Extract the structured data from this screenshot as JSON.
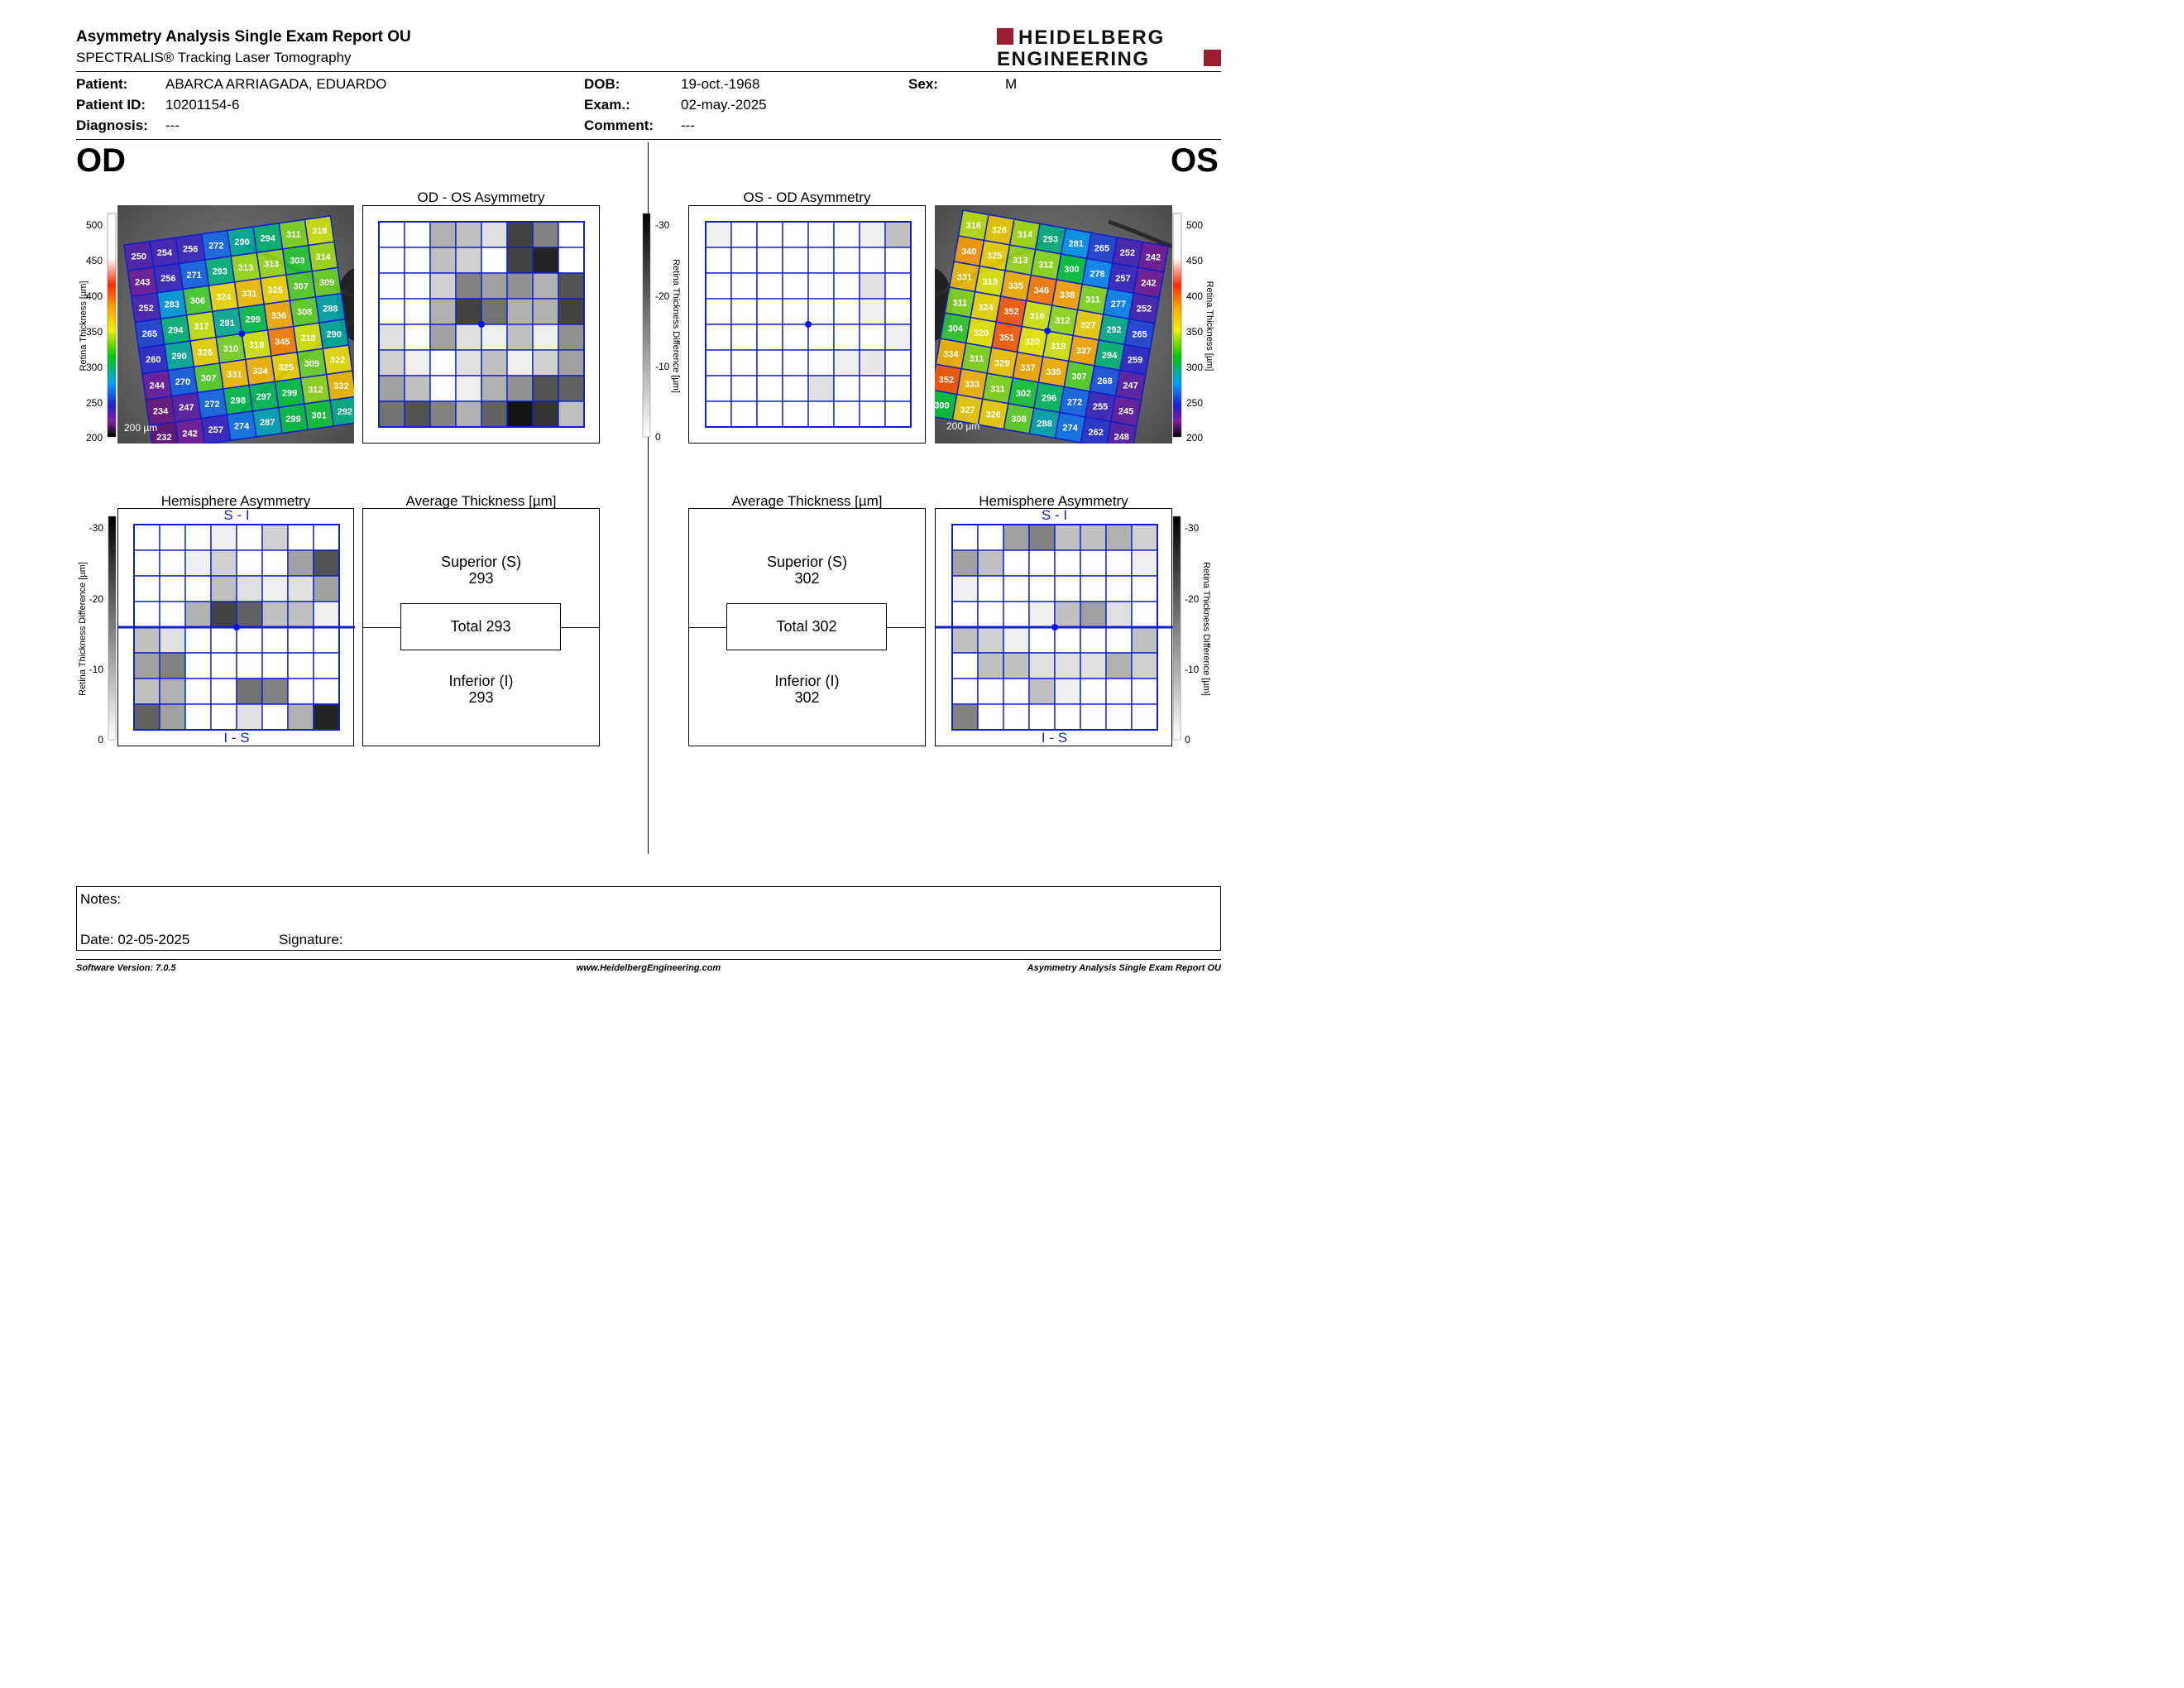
{
  "header": {
    "title": "Asymmetry Analysis Single Exam Report OU",
    "subtitle": "SPECTRALIS® Tracking Laser Tomography",
    "logo_line1": "HEIDELBERG",
    "logo_line2": "ENGINEERING",
    "brand_color": "#9b1b30"
  },
  "patient": {
    "patient_label": "Patient:",
    "patient_value": "ABARCA ARRIAGADA, EDUARDO",
    "id_label": "Patient ID:",
    "id_value": "10201154-6",
    "diagnosis_label": "Diagnosis:",
    "diagnosis_value": "---",
    "dob_label": "DOB:",
    "dob_value": "19-oct.-1968",
    "exam_label": "Exam.:",
    "exam_value": "02-may.-2025",
    "comment_label": "Comment:",
    "comment_value": "---",
    "sex_label": "Sex:",
    "sex_value": "M"
  },
  "od": {
    "eye_label": "OD",
    "asym_title": "OD - OS Asymmetry",
    "hemi_title": "Hemisphere Asymmetry",
    "hemi_top": "S - I",
    "hemi_bottom": "I - S",
    "avg_title": "Average Thickness [µm]",
    "superior_label": "Superior (S)",
    "superior_value": "293",
    "total_text": "Total 293",
    "inferior_label": "Inferior (I)",
    "inferior_value": "293",
    "scale_text": "200 µm",
    "thickness_grid": [
      [
        250,
        254,
        256,
        272,
        290,
        294,
        311,
        318
      ],
      [
        243,
        256,
        271,
        293,
        313,
        313,
        303,
        314
      ],
      [
        252,
        283,
        306,
        324,
        331,
        325,
        307,
        309
      ],
      [
        265,
        294,
        317,
        291,
        299,
        336,
        308,
        288
      ],
      [
        260,
        290,
        326,
        310,
        318,
        345,
        318,
        290
      ],
      [
        244,
        270,
        307,
        331,
        334,
        325,
        309,
        322
      ],
      [
        234,
        247,
        272,
        298,
        297,
        299,
        312,
        332
      ],
      [
        232,
        242,
        257,
        274,
        287,
        299,
        301,
        292
      ]
    ],
    "asym_grid": [
      [
        0,
        0,
        10,
        8,
        4,
        24,
        16,
        0
      ],
      [
        0,
        0,
        8,
        6,
        0,
        24,
        28,
        0
      ],
      [
        0,
        0,
        6,
        16,
        12,
        14,
        10,
        22
      ],
      [
        0,
        0,
        10,
        24,
        18,
        10,
        10,
        24
      ],
      [
        4,
        0,
        12,
        4,
        2,
        8,
        2,
        14
      ],
      [
        6,
        2,
        0,
        4,
        8,
        2,
        6,
        12
      ],
      [
        12,
        8,
        0,
        2,
        10,
        14,
        22,
        20
      ],
      [
        18,
        22,
        16,
        10,
        20,
        30,
        26,
        8
      ]
    ],
    "hemi_grid": [
      [
        0,
        0,
        0,
        2,
        0,
        6,
        0,
        0
      ],
      [
        0,
        0,
        2,
        6,
        0,
        0,
        12,
        22
      ],
      [
        0,
        0,
        0,
        8,
        4,
        2,
        4,
        12
      ],
      [
        0,
        0,
        10,
        24,
        20,
        8,
        8,
        2
      ],
      [
        8,
        4,
        0,
        0,
        0,
        0,
        0,
        0
      ],
      [
        12,
        16,
        0,
        0,
        0,
        0,
        0,
        0
      ],
      [
        8,
        10,
        0,
        0,
        18,
        16,
        0,
        0
      ],
      [
        20,
        12,
        0,
        0,
        4,
        0,
        10,
        28
      ]
    ]
  },
  "os": {
    "eye_label": "OS",
    "asym_title": "OS - OD Asymmetry",
    "hemi_title": "Hemisphere Asymmetry",
    "hemi_top": "S - I",
    "hemi_bottom": "I - S",
    "avg_title": "Average Thickness [µm]",
    "superior_label": "Superior (S)",
    "superior_value": "302",
    "total_text": "Total 302",
    "inferior_label": "Inferior (I)",
    "inferior_value": "302",
    "scale_text": "200 µm",
    "thickness_grid": [
      [
        316,
        328,
        314,
        293,
        281,
        265,
        252,
        242
      ],
      [
        340,
        325,
        313,
        312,
        300,
        278,
        257,
        242
      ],
      [
        331,
        319,
        335,
        346,
        338,
        311,
        277,
        252
      ],
      [
        311,
        324,
        352,
        318,
        312,
        327,
        292,
        265
      ],
      [
        304,
        320,
        351,
        320,
        318,
        337,
        294,
        259
      ],
      [
        334,
        311,
        329,
        337,
        335,
        307,
        268,
        247
      ],
      [
        352,
        333,
        311,
        302,
        296,
        272,
        255,
        245
      ],
      [
        300,
        327,
        326,
        308,
        288,
        274,
        262,
        248
      ]
    ],
    "asym_grid": [
      [
        2,
        0,
        0,
        0,
        0,
        0,
        2,
        8
      ],
      [
        0,
        0,
        0,
        0,
        0,
        0,
        0,
        0
      ],
      [
        0,
        0,
        0,
        0,
        0,
        0,
        4,
        0
      ],
      [
        0,
        0,
        0,
        0,
        0,
        0,
        2,
        0
      ],
      [
        0,
        0,
        0,
        0,
        0,
        0,
        0,
        2
      ],
      [
        0,
        0,
        0,
        0,
        0,
        2,
        3,
        0
      ],
      [
        0,
        0,
        0,
        0,
        4,
        0,
        0,
        0
      ],
      [
        0,
        0,
        0,
        0,
        0,
        0,
        0,
        0
      ]
    ],
    "hemi_grid": [
      [
        0,
        0,
        12,
        16,
        8,
        8,
        10,
        6
      ],
      [
        12,
        8,
        0,
        0,
        0,
        0,
        0,
        2
      ],
      [
        2,
        0,
        0,
        0,
        0,
        0,
        0,
        0
      ],
      [
        0,
        0,
        0,
        2,
        8,
        12,
        4,
        0
      ],
      [
        8,
        6,
        2,
        0,
        0,
        0,
        0,
        8
      ],
      [
        0,
        8,
        8,
        4,
        4,
        4,
        10,
        6
      ],
      [
        0,
        0,
        0,
        8,
        2,
        0,
        0,
        0
      ],
      [
        16,
        0,
        0,
        0,
        0,
        0,
        0,
        0
      ]
    ]
  },
  "scales": {
    "thickness_label": "Retina Thickness [µm]",
    "thickness_ticks": [
      "500",
      "450",
      "400",
      "350",
      "300",
      "250",
      "200"
    ],
    "diff_label": "Retina Thickness Difference [µm]",
    "diff_ticks": [
      "-30",
      "-20",
      "-10",
      "0"
    ]
  },
  "notes": {
    "notes_label": "Notes:",
    "date_text": "Date: 02-05-2025",
    "signature_label": "Signature:"
  },
  "footer": {
    "left": "Software Version: 7.0.5",
    "center": "www.HeidelbergEngineering.com",
    "right": "Asymmetry Analysis Single Exam Report OU"
  },
  "colors": {
    "grid_blue": "#1020c8",
    "fovea_dot": "#0010ff"
  }
}
